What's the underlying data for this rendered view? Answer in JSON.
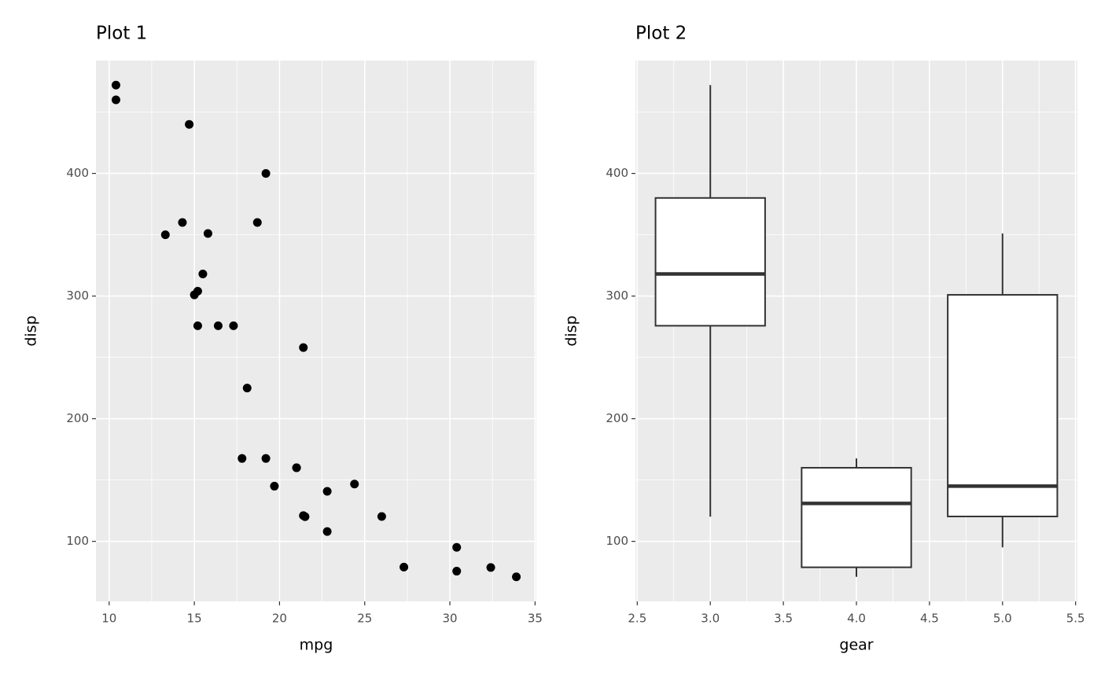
{
  "chart_data": [
    {
      "type": "scatter",
      "title": "Plot 1",
      "x_label": "mpg",
      "y_label": "disp",
      "color": "#000000",
      "x": [
        21.0,
        21.0,
        22.8,
        21.4,
        18.7,
        18.1,
        14.3,
        24.4,
        22.8,
        19.2,
        17.8,
        16.4,
        17.3,
        15.2,
        10.4,
        10.4,
        14.7,
        32.4,
        30.4,
        33.9,
        21.5,
        15.5,
        15.2,
        13.3,
        19.2,
        27.3,
        26.0,
        30.4,
        15.8,
        19.7,
        15.0,
        21.4
      ],
      "values": [
        160,
        160,
        108,
        258,
        360,
        225,
        360,
        146.7,
        140.8,
        167.6,
        167.6,
        275.8,
        275.8,
        275.8,
        472,
        460,
        440,
        78.7,
        75.7,
        71.1,
        120.1,
        318,
        304,
        350,
        400,
        79,
        120.3,
        95.1,
        351,
        145,
        301,
        121
      ],
      "xlim": [
        9.225,
        35.075
      ],
      "ylim": [
        51.055,
        492.045
      ],
      "xticks": [
        10,
        15,
        20,
        25,
        30,
        35
      ],
      "yticks": [
        100,
        200,
        300,
        400
      ],
      "grid": true,
      "minor_grid": true
    },
    {
      "type": "box",
      "title": "Plot 2",
      "x_label": "gear",
      "y_label": "disp",
      "color": "#333333",
      "x": [
        3,
        4,
        5
      ],
      "min": [
        120.1,
        71.1,
        95.1
      ],
      "q1": [
        275.8,
        78.85,
        120.3
      ],
      "median": [
        318,
        130.9,
        145
      ],
      "q3": [
        380,
        160,
        301
      ],
      "max": [
        472,
        167.6,
        351
      ],
      "xlim": [
        2.4875,
        5.5125
      ],
      "ylim": [
        51.055,
        492.045
      ],
      "xticks": [
        2.5,
        {
          "value": 3,
          "label": "3.0"
        },
        3.5,
        {
          "value": 4,
          "label": "4.0"
        },
        4.5,
        {
          "value": 5,
          "label": "5.0"
        },
        5.5
      ],
      "yticks": [
        100,
        200,
        300,
        400
      ],
      "grid": true,
      "minor_grid": true
    }
  ]
}
